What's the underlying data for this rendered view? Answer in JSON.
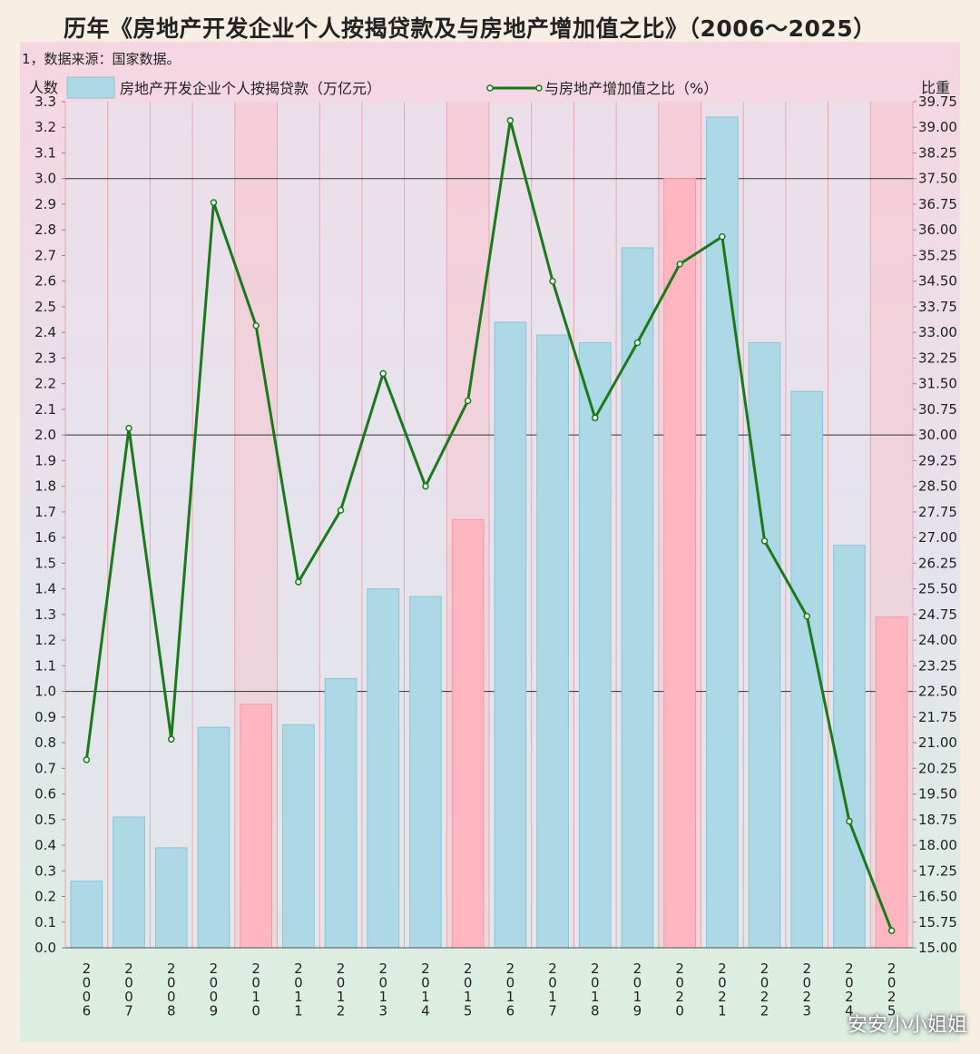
{
  "title": "历年《房地产开发企业个人按揭贷款及与房地产增加值之比》（2006～2025）",
  "note": "1，数据来源：国家数据。",
  "watermark": "安安小小姐姐",
  "chart_data": {
    "type": "bar",
    "categories": [
      "2006",
      "2007",
      "2008",
      "2009",
      "2010",
      "2011",
      "2012",
      "2013",
      "2014",
      "2015",
      "2016",
      "2017",
      "2018",
      "2019",
      "2020",
      "2021",
      "2022",
      "2023",
      "2024",
      "2025"
    ],
    "y_left_label": "人数",
    "y_right_label": "比重",
    "ylim_left": [
      0,
      3.3
    ],
    "ylim_right": [
      15.0,
      39.75
    ],
    "grid": true,
    "legend_position": "top",
    "highlight_years": [
      "2010",
      "2015",
      "2020",
      "2025"
    ],
    "series": [
      {
        "name": "房地产开发企业个人按揭贷款（万亿元）",
        "type": "bar",
        "axis": "left",
        "values": [
          0.26,
          0.51,
          0.39,
          0.86,
          0.95,
          0.87,
          1.05,
          1.4,
          1.37,
          1.67,
          2.44,
          2.39,
          2.36,
          2.73,
          3.0,
          3.24,
          2.36,
          2.17,
          1.57,
          1.29
        ]
      },
      {
        "name": "与房地产增加值之比（%）",
        "type": "line",
        "axis": "right",
        "values": [
          20.5,
          30.2,
          21.1,
          36.8,
          33.2,
          25.7,
          27.8,
          31.8,
          28.5,
          31.0,
          39.2,
          34.5,
          30.5,
          32.7,
          35.0,
          35.8,
          26.9,
          24.7,
          18.7,
          15.5
        ]
      }
    ],
    "colors": {
      "bar": "#add8e6",
      "bar_highlight": "#ffb6c1",
      "line": "#1a7a1a",
      "marker_fill": "#ffffff"
    }
  }
}
